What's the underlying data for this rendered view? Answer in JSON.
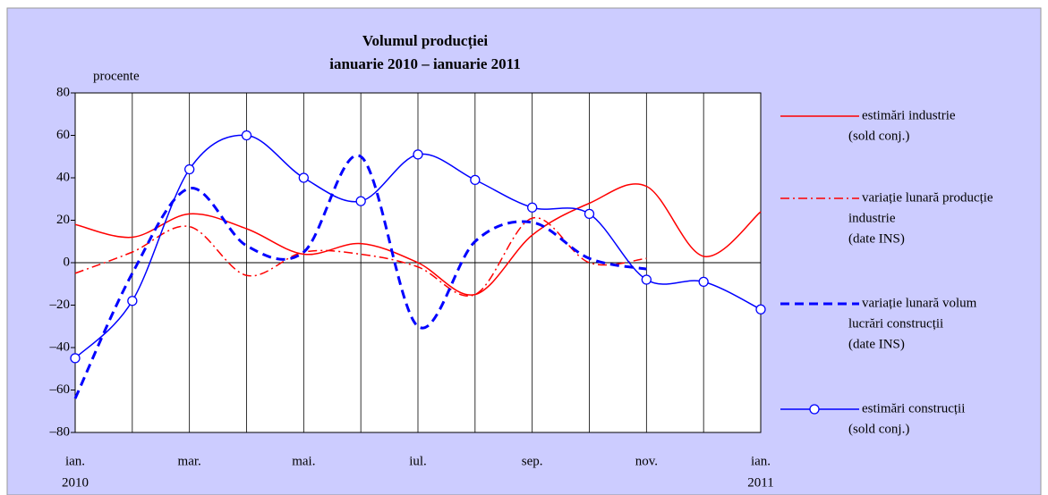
{
  "chart_data": {
    "type": "line",
    "title": "Volumul producției",
    "subtitle": "ianuarie 2010 – ianuarie 2011",
    "y_label": "procente",
    "categories": [
      "ian.",
      null,
      "mar.",
      null,
      "mai.",
      null,
      "iul.",
      null,
      "sep.",
      null,
      "nov.",
      null,
      "ian."
    ],
    "category_years": [
      "2010",
      null,
      null,
      null,
      null,
      null,
      null,
      null,
      null,
      null,
      null,
      null,
      "2011"
    ],
    "ylim": [
      -80,
      80
    ],
    "yticks": [
      {
        "value": -80,
        "label": "–80"
      },
      {
        "value": -60,
        "label": "–60"
      },
      {
        "value": -40,
        "label": "–40"
      },
      {
        "value": -20,
        "label": "–20"
      },
      0,
      20,
      40,
      60,
      80
    ],
    "grid": true,
    "legend": "right",
    "series": [
      {
        "name": [
          "estimări industrie",
          "(sold conj.)"
        ],
        "color": "#ff0000",
        "style": "solid",
        "values": [
          18,
          12,
          23,
          16,
          4,
          9,
          0,
          -15,
          13,
          28,
          36,
          3,
          24
        ]
      },
      {
        "name": [
          "variație lunară producție",
          "industrie",
          "(date INS)"
        ],
        "color": "#ff0000",
        "style": "dashdot",
        "values": [
          -5,
          5,
          17,
          -6,
          5,
          4,
          -2,
          -15,
          21,
          0,
          2,
          null,
          null
        ]
      },
      {
        "name": [
          "variație lunară volum",
          "lucrări construcții",
          "(date INS)"
        ],
        "color": "#0000ff",
        "style": "dashed",
        "values": [
          -64,
          -5,
          35,
          8,
          5,
          50,
          -30,
          10,
          19,
          2,
          -3,
          null,
          null
        ]
      },
      {
        "name": [
          "estimări construcții",
          "(sold conj.)"
        ],
        "color": "#0000ff",
        "style": "marker",
        "values": [
          -45,
          -18,
          44,
          60,
          40,
          29,
          51,
          39,
          26,
          23,
          -8,
          -9,
          -22
        ]
      }
    ]
  }
}
